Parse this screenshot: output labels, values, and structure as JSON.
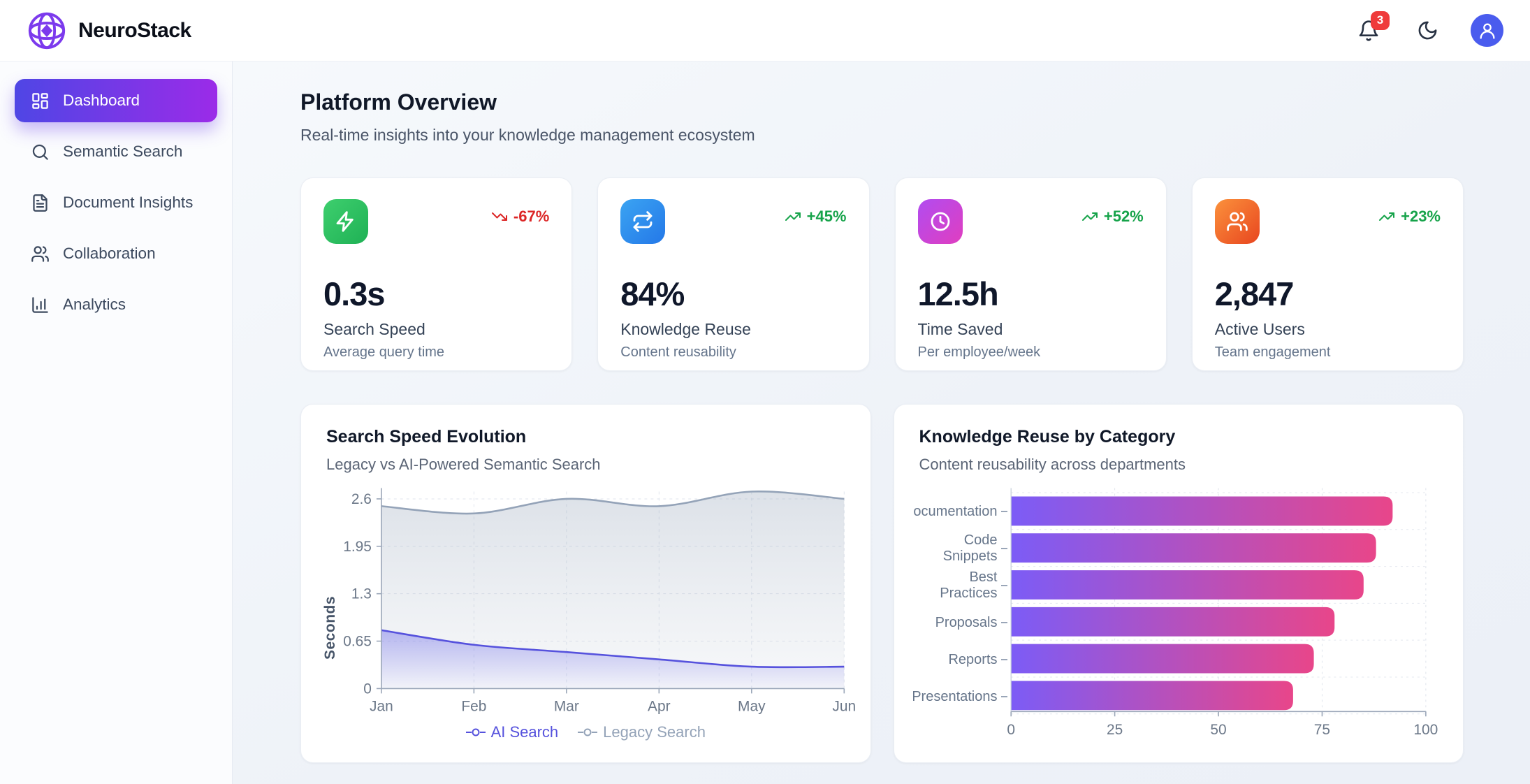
{
  "brand": {
    "name": "NeuroStack"
  },
  "header": {
    "notification_count": "3",
    "icons": {
      "notifications": "bell-icon",
      "theme_toggle": "moon-icon",
      "profile": "user-icon"
    }
  },
  "sidebar": {
    "items": [
      {
        "label": "Dashboard",
        "icon": "dashboard-grid-icon",
        "active": true
      },
      {
        "label": "Semantic Search",
        "icon": "search-icon",
        "active": false
      },
      {
        "label": "Document Insights",
        "icon": "document-icon",
        "active": false
      },
      {
        "label": "Collaboration",
        "icon": "users-icon",
        "active": false
      },
      {
        "label": "Analytics",
        "icon": "bar-chart-icon",
        "active": false
      }
    ]
  },
  "page": {
    "title": "Platform Overview",
    "subtitle": "Real-time insights into your knowledge management ecosystem"
  },
  "stats": [
    {
      "value": "0.3s",
      "label": "Search Speed",
      "sublabel": "Average query time",
      "trend": "-67%",
      "trend_direction": "down",
      "trend_color": "#dc2626",
      "icon": "zap-icon",
      "tile_gradient": [
        "#3ecf6e",
        "#1fb155"
      ]
    },
    {
      "value": "84%",
      "label": "Knowledge Reuse",
      "sublabel": "Content reusability",
      "trend": "+45%",
      "trend_direction": "up",
      "trend_color": "#16a34a",
      "icon": "repeat-icon",
      "tile_gradient": [
        "#3ba4f2",
        "#2478e8"
      ]
    },
    {
      "value": "12.5h",
      "label": "Time Saved",
      "sublabel": "Per employee/week",
      "trend": "+52%",
      "trend_direction": "up",
      "trend_color": "#16a34a",
      "icon": "clock-icon",
      "tile_gradient": [
        "#b14cf0",
        "#e03ec0"
      ]
    },
    {
      "value": "2,847",
      "label": "Active Users",
      "sublabel": "Team engagement",
      "trend": "+23%",
      "trend_direction": "up",
      "trend_color": "#16a34a",
      "icon": "users-icon",
      "tile_gradient": [
        "#fb913c",
        "#e8461f"
      ]
    }
  ],
  "chart_data": [
    {
      "type": "area",
      "title": "Search Speed Evolution",
      "subtitle": "Legacy vs AI-Powered Semantic Search",
      "x": [
        "Jan",
        "Feb",
        "Mar",
        "Apr",
        "May",
        "Jun"
      ],
      "ylabel": "Seconds",
      "yticks": [
        0,
        0.65,
        1.3,
        1.95,
        2.6
      ],
      "ymax": 2.7,
      "grid": true,
      "legend_position": "bottom",
      "series": [
        {
          "name": "Legacy Search",
          "color": "#94a3b8",
          "fill_from": "rgba(148,163,184,0.32)",
          "fill_to": "rgba(174,186,202,0.10)",
          "values": [
            2.5,
            2.4,
            2.6,
            2.5,
            2.7,
            2.6
          ]
        },
        {
          "name": "AI Search",
          "color": "#5652dd",
          "fill_from": "rgba(99,97,232,0.42)",
          "fill_to": "rgba(99,97,232,0.03)",
          "values": [
            0.8,
            0.6,
            0.5,
            0.4,
            0.3,
            0.3
          ]
        }
      ]
    },
    {
      "type": "bar",
      "orientation": "horizontal",
      "title": "Knowledge Reuse by Category",
      "subtitle": "Content reusability across departments",
      "categories": [
        "Documentation",
        "Code Snippets",
        "Best Practices",
        "Proposals",
        "Reports",
        "Presentations"
      ],
      "values": [
        92,
        88,
        85,
        78,
        73,
        68
      ],
      "xticks": [
        0,
        25,
        50,
        75,
        100
      ],
      "xlim": [
        0,
        100
      ],
      "grid": true,
      "bar_gradient": [
        "#7c5cf6",
        "#e8468a"
      ]
    }
  ],
  "colors": {
    "accent_gradient": [
      "#4f46e5",
      "#9b2be8"
    ],
    "badge": "#ef3b3b",
    "avatar_bg": "#4a5cee",
    "logo": "#7c3aed",
    "trend_up": "#16a34a",
    "trend_down": "#dc2626"
  }
}
